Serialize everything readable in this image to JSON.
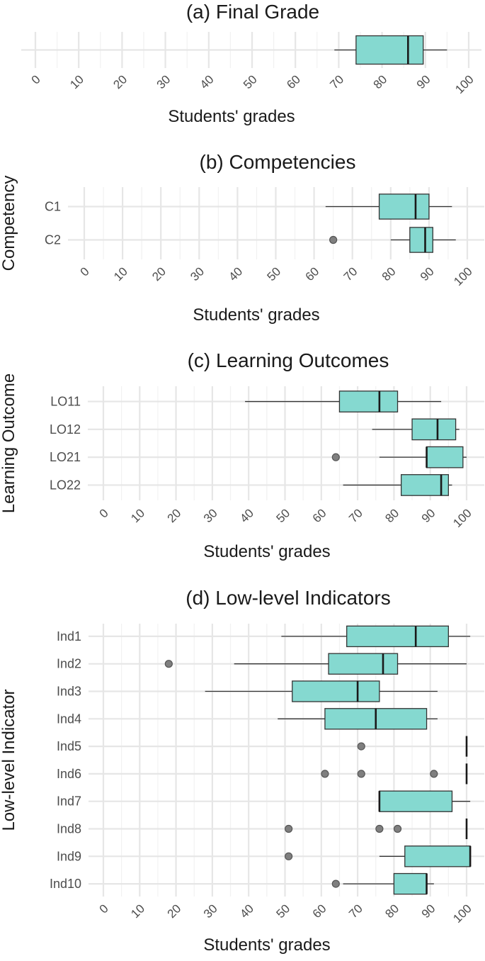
{
  "chart_data": [
    {
      "type": "box",
      "title": "(a) Final Grade",
      "xlabel": "Students' grades",
      "ylabel": "",
      "xlim": [
        0,
        100
      ],
      "xticks": [
        0,
        10,
        20,
        30,
        40,
        50,
        60,
        70,
        80,
        90,
        100
      ],
      "categories": [
        ""
      ],
      "boxes": [
        {
          "category": "",
          "min": 69,
          "q1": 74,
          "median": 86,
          "q3": 89.5,
          "max": 95,
          "outliers": []
        }
      ],
      "fill_color": "#85d9d0",
      "grid": true
    },
    {
      "type": "box",
      "title": "(b) Competencies",
      "xlabel": "Students' grades",
      "ylabel": "Competency",
      "xlim": [
        0,
        100
      ],
      "xticks": [
        0,
        10,
        20,
        30,
        40,
        50,
        60,
        70,
        80,
        90,
        100
      ],
      "categories": [
        "C1",
        "C2"
      ],
      "boxes": [
        {
          "category": "C1",
          "min": 63,
          "q1": 77,
          "median": 86.5,
          "q3": 90,
          "max": 96,
          "outliers": []
        },
        {
          "category": "C2",
          "min": 80,
          "q1": 85,
          "median": 89,
          "q3": 91,
          "max": 97,
          "outliers": [
            65
          ]
        }
      ],
      "fill_color": "#85d9d0",
      "grid": true
    },
    {
      "type": "box",
      "title": "(c) Learning Outcomes",
      "xlabel": "Students' grades",
      "ylabel": "Learning Outcome",
      "xlim": [
        0,
        100
      ],
      "xticks": [
        0,
        10,
        20,
        30,
        40,
        50,
        60,
        70,
        80,
        90,
        100
      ],
      "categories": [
        "LO11",
        "LO12",
        "LO21",
        "LO22"
      ],
      "boxes": [
        {
          "category": "LO11",
          "min": 39,
          "q1": 65,
          "median": 76,
          "q3": 81,
          "max": 93,
          "outliers": []
        },
        {
          "category": "LO12",
          "min": 74,
          "q1": 85,
          "median": 92,
          "q3": 97,
          "max": 98,
          "outliers": []
        },
        {
          "category": "LO21",
          "min": 76,
          "q1": 89,
          "median": 89,
          "q3": 99,
          "max": 100,
          "outliers": [
            64
          ]
        },
        {
          "category": "LO22",
          "min": 66,
          "q1": 82,
          "median": 93,
          "q3": 95,
          "max": 96,
          "outliers": []
        }
      ],
      "fill_color": "#85d9d0",
      "grid": true
    },
    {
      "type": "box",
      "title": "(d) Low-level Indicators",
      "xlabel": "Students' grades",
      "ylabel": "Low-level Indicator",
      "xlim": [
        0,
        100
      ],
      "xticks": [
        0,
        10,
        20,
        30,
        40,
        50,
        60,
        70,
        80,
        90,
        100
      ],
      "categories": [
        "Ind1",
        "Ind2",
        "Ind3",
        "Ind4",
        "Ind5",
        "Ind6",
        "Ind7",
        "Ind8",
        "Ind9",
        "Ind10"
      ],
      "boxes": [
        {
          "category": "Ind1",
          "min": 49,
          "q1": 67,
          "median": 86,
          "q3": 95,
          "max": 101,
          "outliers": []
        },
        {
          "category": "Ind2",
          "min": 36,
          "q1": 62,
          "median": 77,
          "q3": 81,
          "max": 100,
          "outliers": [
            18
          ]
        },
        {
          "category": "Ind3",
          "min": 28,
          "q1": 52,
          "median": 70,
          "q3": 76,
          "max": 92,
          "outliers": []
        },
        {
          "category": "Ind4",
          "min": 48,
          "q1": 61,
          "median": 75,
          "q3": 89,
          "max": 92,
          "outliers": []
        },
        {
          "category": "Ind5",
          "min": 100,
          "q1": 100,
          "median": 100,
          "q3": 100,
          "max": 100,
          "outliers": [
            71
          ]
        },
        {
          "category": "Ind6",
          "min": 100,
          "q1": 100,
          "median": 100,
          "q3": 100,
          "max": 100,
          "outliers": [
            61,
            71,
            91
          ]
        },
        {
          "category": "Ind7",
          "min": 76,
          "q1": 76,
          "median": 76,
          "q3": 96,
          "max": 101,
          "outliers": []
        },
        {
          "category": "Ind8",
          "min": 100,
          "q1": 100,
          "median": 100,
          "q3": 100,
          "max": 100,
          "outliers": [
            51,
            76,
            81
          ]
        },
        {
          "category": "Ind9",
          "min": 76,
          "q1": 83,
          "median": 101,
          "q3": 101,
          "max": 101,
          "outliers": [
            51
          ]
        },
        {
          "category": "Ind10",
          "min": 66,
          "q1": 80,
          "median": 89,
          "q3": 89,
          "max": 91,
          "outliers": [
            64
          ]
        }
      ],
      "fill_color": "#85d9d0",
      "grid": true
    }
  ]
}
